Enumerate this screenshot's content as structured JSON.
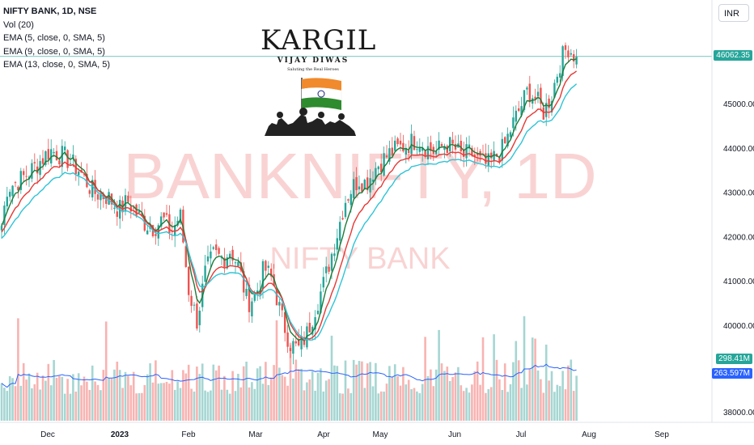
{
  "legend": {
    "symbol": "NIFTY BANK, 1D, NSE",
    "indicators": [
      "Vol (20)",
      "EMA (5, close, 0, SMA, 5)",
      "EMA (9, close, 0, SMA, 5)",
      "EMA (13, close, 0, SMA, 5)"
    ]
  },
  "currency_button": "INR",
  "logo": {
    "title": "KARGIL",
    "subtitle": "VIJAY DIWAS",
    "tagline": "Saluting the Real Heroes",
    "icon": "indian-flag-soldiers-icon"
  },
  "watermark": {
    "main": "BANKNIFTY, 1D",
    "sub": "NIFTY BANK"
  },
  "current_price_label": "46062.35",
  "volume_label": "298.41M",
  "volume_ma_label": "263.597M",
  "colors": {
    "up": "#26a69a",
    "down": "#ef5350",
    "ema5": "#1e7b3a",
    "ema9": "#e53935",
    "ema13": "#2ec4d6",
    "vol_up": "#a5d6d2",
    "vol_down": "#f8b3b1",
    "vol_ma": "#2962ff",
    "price_line": "#26a69a"
  },
  "chart_data": {
    "type": "candlestick",
    "y_axis_ticks": [
      "38000.00",
      "40000.00",
      "41000.00",
      "42000.00",
      "43000.00",
      "44000.00",
      "45000.00"
    ],
    "x_axis_labels": [
      "Dec",
      "2023",
      "Feb",
      "Mar",
      "Apr",
      "May",
      "Jun",
      "Jul",
      "Aug",
      "Sep"
    ],
    "ylim": [
      37800,
      47200
    ],
    "close_series_by_month": {
      "Dec": [
        43100,
        43300,
        43600,
        43950,
        43800,
        43500,
        43000,
        42900
      ],
      "Jan": [
        42600,
        42800,
        42500,
        42300,
        42200,
        42400,
        42100,
        42500
      ],
      "Feb": [
        40800,
        40100,
        41200,
        41600,
        41500,
        41700,
        41300,
        40500
      ],
      "Mar": [
        40700,
        41300,
        41000,
        40200,
        39600,
        39450,
        39800,
        40400
      ],
      "Apr": [
        40900,
        41500,
        42100,
        42800,
        43100,
        43300,
        43200,
        43500
      ],
      "May": [
        43700,
        43900,
        44000,
        44100,
        44200,
        44000,
        43900,
        44100
      ],
      "Jun": [
        44000,
        43800,
        43900,
        43700,
        43600,
        43800,
        44000,
        44500
      ],
      "Jul": [
        44900,
        45300,
        45100,
        44800,
        45200,
        45900,
        46300,
        46062
      ]
    },
    "current_price": 46062.35,
    "volume_last": "298.41M",
    "volume_ma_last": "263.597M"
  }
}
